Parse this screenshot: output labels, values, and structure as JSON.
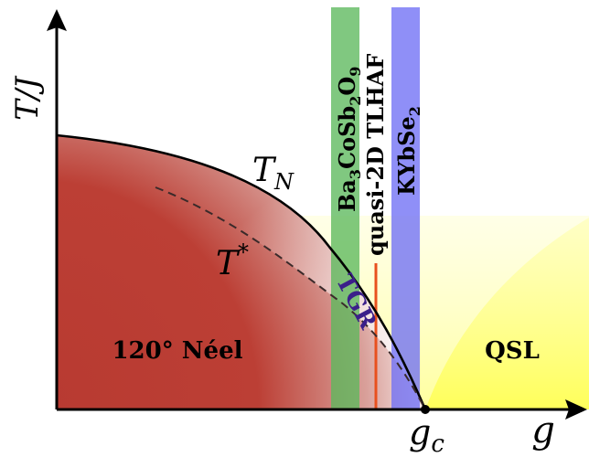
{
  "axes": {
    "y_label": "T/J",
    "x_label": "g",
    "critical_point": "g",
    "critical_point_sub": "c"
  },
  "regions": {
    "neel": "120° Néel",
    "qsl": "QSL",
    "tgr": "TGR"
  },
  "curves": {
    "tn_main": "T",
    "tn_sub": "N",
    "tstar_main": "T",
    "tstar_sup": "*"
  },
  "materials": {
    "ba": {
      "prefix": "Ba",
      "s1": "3",
      "mid": "CoSb",
      "s2": "2",
      "o": "O",
      "s3": "9",
      "color": "#5cb85c"
    },
    "tlhaf": {
      "label": "quasi-2D TLHAF",
      "color": "#e8501e"
    },
    "kyb": {
      "prefix": "KYbSe",
      "s1": "2",
      "color": "#6f6ff5"
    }
  },
  "colors": {
    "neel_fill": "#bb3b33",
    "qsl_fill": "#ffff6e",
    "axis": "#000000"
  }
}
